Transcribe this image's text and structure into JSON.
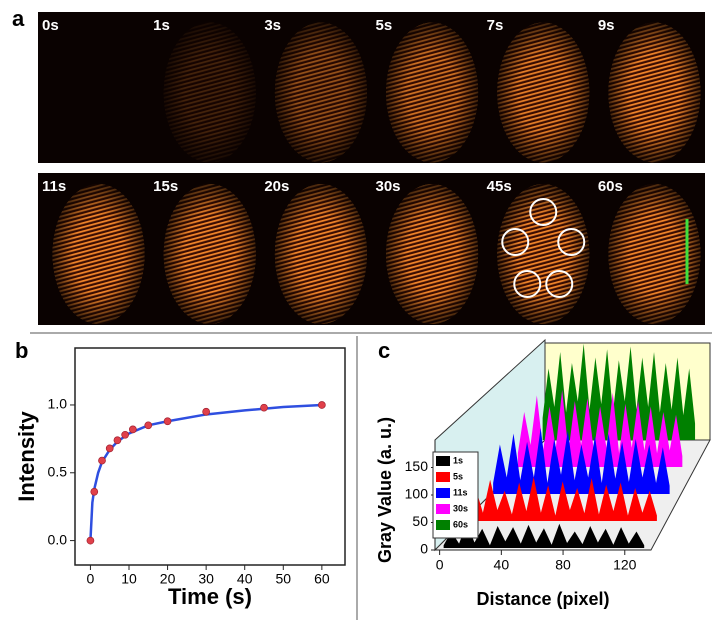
{
  "panel_a": {
    "label": "a",
    "frames": [
      "0s",
      "1s",
      "3s",
      "5s",
      "7s",
      "9s",
      "11s",
      "15s",
      "20s",
      "30s",
      "45s",
      "60s"
    ]
  },
  "chart_data": [
    {
      "type": "scatter",
      "label": "b",
      "x_label": "Time (s)",
      "y_label": "Intensity",
      "xlim": [
        -4,
        66
      ],
      "xticks": [
        0,
        10,
        20,
        30,
        40,
        50,
        60
      ],
      "ylim": [
        -0.18,
        1.42
      ],
      "yticks": [
        {
          "value": 0,
          "label": "0.0"
        },
        {
          "value": 0.5,
          "label": "0.5"
        },
        {
          "value": 1,
          "label": "1.0"
        }
      ],
      "series": [
        {
          "type": "line",
          "color": "#2f4fe0",
          "x": [
            0,
            0.5,
            1,
            2,
            3,
            5,
            7,
            10,
            15,
            20,
            30,
            40,
            50,
            60
          ],
          "values": [
            0,
            0.28,
            0.38,
            0.5,
            0.58,
            0.67,
            0.73,
            0.79,
            0.85,
            0.88,
            0.93,
            0.96,
            0.985,
            1.0
          ]
        },
        {
          "type": "scatter",
          "color": "#e0404a",
          "x": [
            0,
            1,
            3,
            5,
            7,
            9,
            11,
            15,
            20,
            30,
            45,
            60
          ],
          "values": [
            0,
            0.36,
            0.59,
            0.68,
            0.74,
            0.78,
            0.82,
            0.85,
            0.88,
            0.95,
            0.98,
            1.0
          ]
        }
      ]
    },
    {
      "type": "waterfall",
      "label": "c",
      "x_label": "Distance (pixel)",
      "y_label": "Gray Value (a. u.)",
      "xlim": [
        -3,
        137
      ],
      "xticks": [
        0,
        40,
        80,
        120
      ],
      "ylim": [
        0,
        200
      ],
      "yticks": [
        0,
        50,
        100,
        150
      ],
      "x": [
        0,
        5,
        10,
        15,
        20,
        25,
        30,
        35,
        40,
        45,
        50,
        55,
        60,
        65,
        70,
        75,
        80,
        85,
        90,
        95,
        100,
        105,
        110,
        115,
        120,
        125,
        130
      ],
      "series": [
        {
          "name": "1s",
          "color": "#000000",
          "values": [
            5,
            30,
            8,
            45,
            10,
            35,
            5,
            40,
            12,
            38,
            8,
            42,
            10,
            36,
            6,
            44,
            9,
            30,
            7,
            40,
            10,
            35,
            6,
            38,
            8,
            30,
            5
          ]
        },
        {
          "name": "5s",
          "color": "#ff0000",
          "values": [
            10,
            60,
            15,
            75,
            20,
            55,
            12,
            70,
            18,
            80,
            15,
            65,
            10,
            72,
            20,
            60,
            14,
            78,
            12,
            66,
            18,
            70,
            10,
            60,
            15,
            55,
            10
          ]
        },
        {
          "name": "11s",
          "color": "#0000ff",
          "values": [
            20,
            90,
            30,
            110,
            25,
            95,
            30,
            120,
            20,
            100,
            35,
            115,
            25,
            90,
            30,
            105,
            20,
            110,
            28,
            95,
            22,
            100,
            30,
            90,
            20,
            85,
            15
          ]
        },
        {
          "name": "30s",
          "color": "#ff00ff",
          "values": [
            25,
            100,
            40,
            130,
            30,
            110,
            35,
            140,
            28,
            120,
            40,
            125,
            30,
            110,
            35,
            135,
            25,
            115,
            35,
            120,
            30,
            110,
            25,
            100,
            30,
            95,
            20
          ]
        },
        {
          "name": "60s",
          "color": "#008000",
          "values": [
            40,
            130,
            60,
            160,
            50,
            140,
            70,
            175,
            55,
            150,
            65,
            165,
            50,
            145,
            70,
            170,
            55,
            150,
            60,
            160,
            50,
            140,
            55,
            150,
            45,
            130,
            30
          ]
        }
      ]
    }
  ]
}
